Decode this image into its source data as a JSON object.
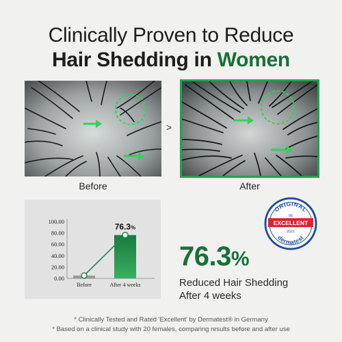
{
  "headline": {
    "line1": "Clinically Proven to Reduce",
    "line2_prefix": "Hair Shedding in",
    "line2_accent": "Women"
  },
  "photos": {
    "before_caption": "Before",
    "after_caption": "After",
    "between_glyph": ">"
  },
  "chart_data": {
    "type": "bar",
    "categories": [
      "Before",
      "After 4 weeks"
    ],
    "values": [
      5,
      76.3
    ],
    "data_label": "76.3",
    "data_label_unit": "%",
    "yticks": [
      "100.00",
      "80.00",
      "60.00",
      "40.00",
      "20.00",
      "0.00"
    ],
    "ylim": [
      0,
      100
    ],
    "colors": {
      "before": "#9a9a9a",
      "after": "#1f8a47",
      "line": "#1f8a47"
    }
  },
  "result": {
    "value": "76.3",
    "unit": "%",
    "line1": "Reduced Hair Shedding",
    "line2": "After 4 weeks"
  },
  "seal": {
    "top": "ORIGINAL",
    "number": "06",
    "banner": "EXCELLENT",
    "year": "2021",
    "bottom": "dermatest"
  },
  "footnotes": {
    "line1": "* Clinically Tested and Rated 'Excellent' by Dermatest® in Germany",
    "line2": "* Based on a clinical study with 20 females, comparing results before and after use"
  },
  "colors": {
    "accent": "#17703a",
    "frame": "#19a84a",
    "background": "#f1f1ef"
  }
}
